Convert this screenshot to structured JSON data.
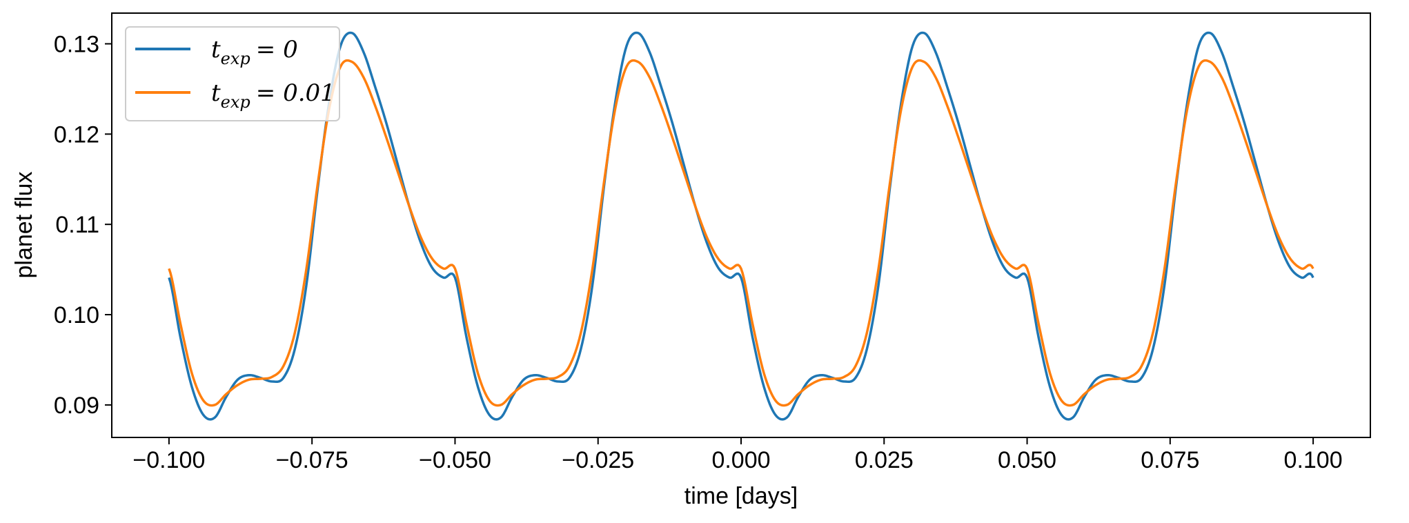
{
  "chart_data": {
    "type": "line",
    "title": "",
    "xlabel": "time [days]",
    "ylabel": "planet flux",
    "xlim": [
      -0.11,
      0.11
    ],
    "ylim": [
      0.0864,
      0.1334
    ],
    "xticks": [
      -0.1,
      -0.075,
      -0.05,
      -0.025,
      0.0,
      0.025,
      0.05,
      0.075,
      0.1
    ],
    "xtick_labels": [
      "−0.100",
      "−0.075",
      "−0.050",
      "−0.025",
      "0.000",
      "0.025",
      "0.050",
      "0.075",
      "0.100"
    ],
    "yticks": [
      0.09,
      0.1,
      0.11,
      0.12,
      0.13
    ],
    "ytick_labels": [
      "0.09",
      "0.10",
      "0.11",
      "0.12",
      "0.13"
    ],
    "grid": false,
    "legend": "top-left",
    "period": 0.05,
    "x_range": [
      -0.1,
      0.1
    ],
    "series": [
      {
        "name_base": "t",
        "name_sub": "exp",
        "name_value": "= 0",
        "color": "#1f77b4",
        "keypoints_phase": [
          0.0,
          0.04,
          0.08,
          0.12,
          0.16,
          0.2,
          0.24,
          0.28,
          0.32,
          0.36,
          0.4,
          0.44,
          0.48,
          0.52,
          0.56,
          0.6,
          0.64,
          0.68,
          0.72,
          0.76,
          0.8,
          0.84,
          0.88,
          0.92,
          0.96,
          1.0
        ],
        "keypoints_value": [
          0.1041,
          0.0975,
          0.092,
          0.0889,
          0.0886,
          0.0909,
          0.0928,
          0.0933,
          0.093,
          0.0926,
          0.093,
          0.0962,
          0.1032,
          0.114,
          0.1235,
          0.1298,
          0.1312,
          0.1291,
          0.1253,
          0.1212,
          0.1166,
          0.112,
          0.108,
          0.1052,
          0.1041,
          0.1041
        ]
      },
      {
        "name_base": "t",
        "name_sub": "exp",
        "name_value": "= 0.01",
        "color": "#ff7f0e",
        "keypoints_phase": [
          0.0,
          0.04,
          0.08,
          0.12,
          0.16,
          0.2,
          0.24,
          0.28,
          0.32,
          0.36,
          0.4,
          0.44,
          0.48,
          0.52,
          0.56,
          0.6,
          0.64,
          0.68,
          0.72,
          0.76,
          0.8,
          0.84,
          0.88,
          0.92,
          0.96,
          1.0
        ],
        "keypoints_value": [
          0.1051,
          0.099,
          0.0935,
          0.0905,
          0.09,
          0.0912,
          0.0922,
          0.0928,
          0.0929,
          0.0931,
          0.0943,
          0.098,
          0.105,
          0.1145,
          0.1228,
          0.1275,
          0.128,
          0.1263,
          0.1232,
          0.1196,
          0.1158,
          0.112,
          0.1086,
          0.1062,
          0.1051,
          0.1051
        ]
      }
    ]
  }
}
